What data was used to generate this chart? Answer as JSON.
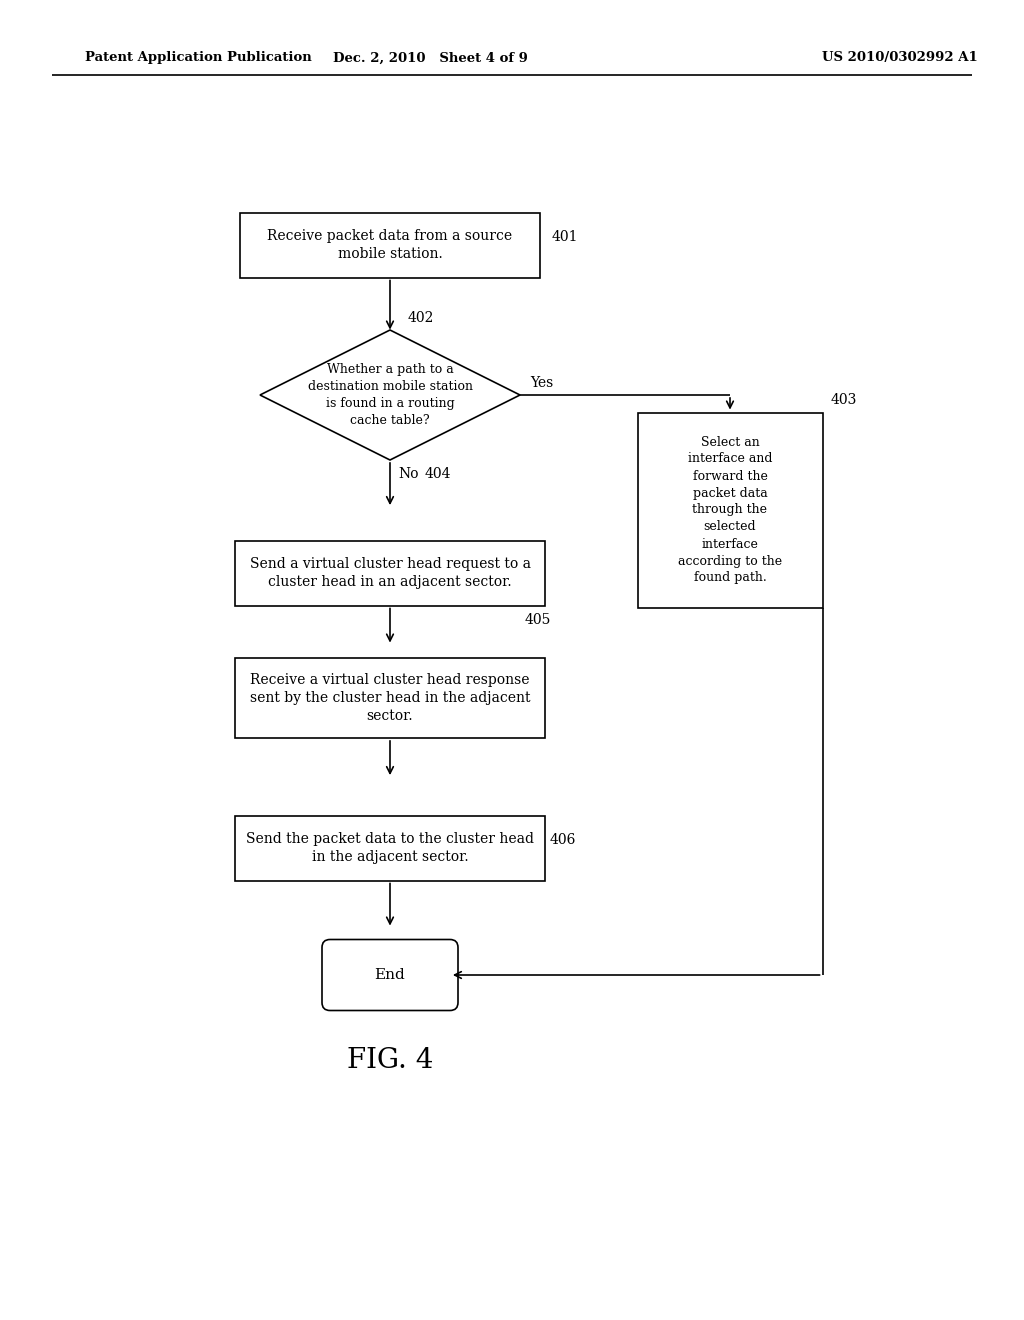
{
  "header_left": "Patent Application Publication",
  "header_mid": "Dec. 2, 2010   Sheet 4 of 9",
  "header_right": "US 2010/0302992 A1",
  "fig_label": "FIG. 4",
  "box401_label": "Receive packet data from a source\nmobile station.",
  "box402_label": "Whether a path to a\ndestination mobile station\nis found in a routing\ncache table?",
  "box403_label": "Select an\ninterface and\nforward the\npacket data\nthrough the\nselected\ninterface\naccording to the\nfound path.",
  "box404_label": "Send a virtual cluster head request to a\ncluster head in an adjacent sector.",
  "box405_label": "Receive a virtual cluster head response\nsent by the cluster head in the adjacent\nsector.",
  "box406_label": "Send the packet data to the cluster head\nin the adjacent sector.",
  "end_label": "End",
  "background": "#ffffff",
  "box_facecolor": "#ffffff",
  "box_edgecolor": "#000000",
  "text_color": "#000000",
  "fontsize": 10,
  "header_fontsize": 9.5,
  "fig_label_fontsize": 20,
  "tag401": "401",
  "tag402": "402",
  "tag403": "403",
  "tag404": "404",
  "tag405": "405",
  "tag406": "406",
  "yes_label": "Yes",
  "no_label": "No"
}
